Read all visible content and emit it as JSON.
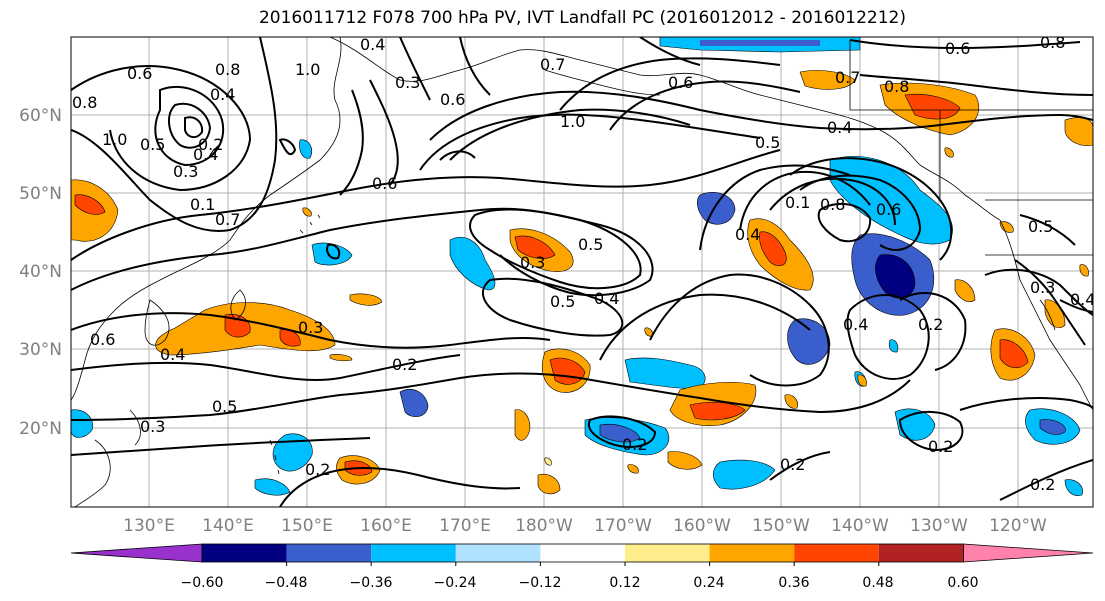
{
  "title": "2016011712 F078 700 hPa PV, IVT Landfall PC (2016012012 - 2016012212)",
  "lat_labels": [
    "60°N",
    "50°N",
    "40°N",
    "30°N",
    "20°N"
  ],
  "lon_labels": [
    "130°E",
    "140°E",
    "150°E",
    "160°E",
    "170°E",
    "180°W",
    "170°W",
    "160°W",
    "150°W",
    "140°W",
    "130°W",
    "120°W"
  ],
  "colorbar": {
    "ticks": [
      "−0.60",
      "−0.48",
      "−0.36",
      "−0.24",
      "−0.12",
      "0.12",
      "0.24",
      "0.36",
      "0.48",
      "0.60"
    ],
    "colors": [
      "#9932cc",
      "#000080",
      "#3a5fcd",
      "#00bfff",
      "#b0e2ff",
      "#ffffff",
      "#ffec8b",
      "#ffa500",
      "#ff4500",
      "#b22222",
      "#ff82ab"
    ]
  },
  "colors": {
    "neg_strong": "#000080",
    "neg_mid": "#3a5fcd",
    "neg_light": "#00bfff",
    "neg_pale": "#b0e2ff",
    "pos_pale": "#ffec8b",
    "pos_light": "#ffa500",
    "pos_mid": "#ff4500",
    "pos_strong": "#b22222"
  },
  "contour_labels": [
    "0.6",
    "0.8",
    "0.8",
    "0.4",
    "1.0",
    "0.4",
    "0.3",
    "0.6",
    "0.7",
    "0.6",
    "0.6",
    "0.8",
    "0.7",
    "0.8",
    "1.0",
    "0.5",
    "0.4",
    "0.3",
    "0.2",
    "0.1",
    "0.7",
    "1.0",
    "0.6",
    "0.5",
    "0.3",
    "0.5",
    "0.4",
    "0.5",
    "0.4",
    "0.1",
    "0.8",
    "0.6",
    "0.4",
    "0.5",
    "0.3",
    "0.3",
    "0.4",
    "0.6",
    "0.4",
    "0.2",
    "0.2",
    "0.2",
    "0.2",
    "0.2",
    "0.3",
    "0.2",
    "0.2",
    "0.5",
    "0.4"
  ]
}
